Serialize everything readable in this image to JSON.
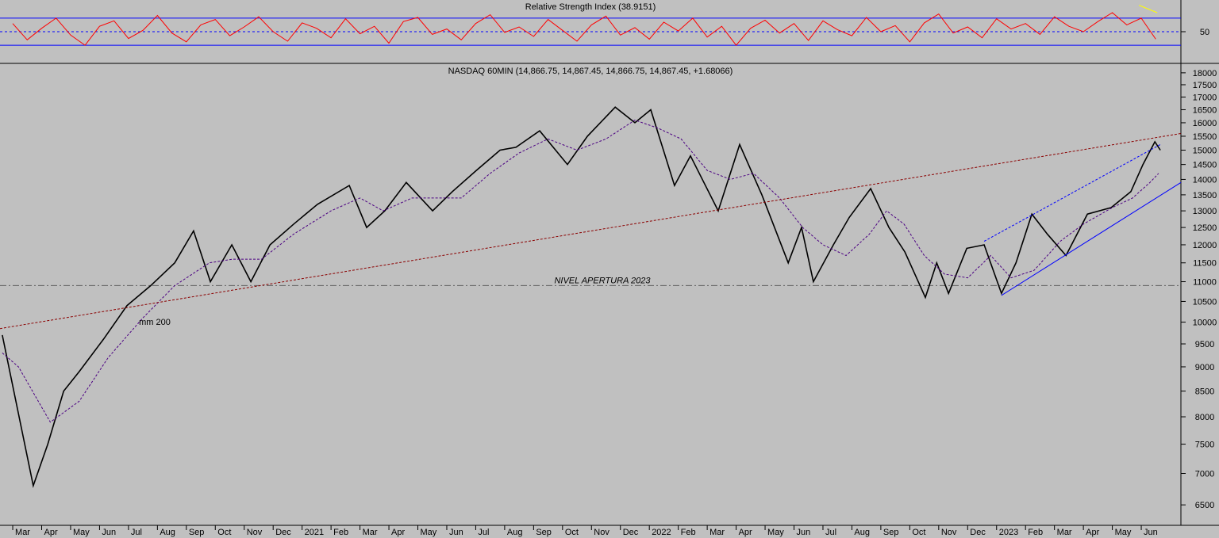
{
  "chart_data": [
    {
      "type": "line",
      "title": "Relative Strength Index (38.9151)",
      "xlim": [
        0.56,
        41.37
      ],
      "ylim": [
        5.6,
        94.4
      ],
      "yticks": [
        50
      ],
      "levels": [
        30,
        70
      ],
      "level_color": "#0000ff",
      "series": [
        {
          "color": "#ff0000",
          "x": [
            1,
            1.5,
            2,
            2.5,
            3,
            3.5,
            4,
            4.5,
            5,
            5.5,
            6,
            6.5,
            7,
            7.5,
            8,
            8.5,
            9,
            9.5,
            10,
            10.5,
            11,
            11.5,
            12,
            12.5,
            13,
            13.5,
            14,
            14.5,
            15,
            15.5,
            16,
            16.5,
            17,
            17.5,
            18,
            18.5,
            19,
            19.5,
            20,
            20.5,
            21,
            21.5,
            22,
            22.5,
            23,
            23.5,
            24,
            24.5,
            25,
            25.5,
            26,
            26.5,
            27,
            27.5,
            28,
            28.5,
            29,
            29.5,
            30,
            30.5,
            31,
            31.5,
            32,
            32.5,
            33,
            33.5,
            34,
            34.5,
            35,
            35.5,
            36,
            36.5,
            37,
            37.5,
            38,
            38.5,
            39,
            39.5,
            40,
            40.5
          ],
          "values": [
            62,
            38,
            55,
            70,
            45,
            30,
            58,
            66,
            40,
            52,
            74,
            48,
            35,
            60,
            68,
            44,
            57,
            72,
            50,
            36,
            63,
            55,
            41,
            69,
            47,
            58,
            33,
            65,
            71,
            46,
            54,
            38,
            62,
            75,
            49,
            57,
            43,
            68,
            52,
            36,
            60,
            73,
            45,
            56,
            39,
            64,
            51,
            70,
            42,
            58,
            30,
            55,
            67,
            48,
            62,
            37,
            66,
            53,
            44,
            71,
            50,
            59,
            35,
            63,
            76,
            48,
            57,
            41,
            69,
            54,
            62,
            46,
            72,
            58,
            50,
            65,
            78,
            60,
            70,
            39
          ]
        },
        {
          "color": "#ffff00",
          "x": [
            39.92,
            40.55
          ],
          "values": [
            89,
            78
          ]
        }
      ]
    },
    {
      "type": "line",
      "title": "NASDAQ 60MIN (14,866.75, 14,867.45, 14,866.75, 14,867.45, +1.68066)",
      "log_scale": true,
      "xlim": [
        0.56,
        41.37
      ],
      "ylim": [
        6194,
        18404
      ],
      "yticks": [
        6500,
        7000,
        7500,
        8000,
        8500,
        9000,
        9500,
        10000,
        10500,
        11000,
        11500,
        12000,
        12500,
        13000,
        13500,
        14000,
        14500,
        15000,
        15500,
        16000,
        16500,
        17000,
        17500,
        18000
      ],
      "xticks": [
        {
          "value": 1,
          "label": "Mar"
        },
        {
          "value": 2,
          "label": "Apr"
        },
        {
          "value": 3,
          "label": "May"
        },
        {
          "value": 4,
          "label": "Jun"
        },
        {
          "value": 5,
          "label": "Jul"
        },
        {
          "value": 6,
          "label": "Aug"
        },
        {
          "value": 7,
          "label": "Sep"
        },
        {
          "value": 8,
          "label": "Oct"
        },
        {
          "value": 9,
          "label": "Nov"
        },
        {
          "value": 10,
          "label": "Dec"
        },
        {
          "value": 11,
          "label": "2021"
        },
        {
          "value": 12,
          "label": "Feb"
        },
        {
          "value": 13,
          "label": "Mar"
        },
        {
          "value": 14,
          "label": "Apr"
        },
        {
          "value": 15,
          "label": "May"
        },
        {
          "value": 16,
          "label": "Jun"
        },
        {
          "value": 17,
          "label": "Jul"
        },
        {
          "value": 18,
          "label": "Aug"
        },
        {
          "value": 19,
          "label": "Sep"
        },
        {
          "value": 20,
          "label": "Oct"
        },
        {
          "value": 21,
          "label": "Nov"
        },
        {
          "value": 22,
          "label": "Dec"
        },
        {
          "value": 23,
          "label": "2022"
        },
        {
          "value": 24,
          "label": "Feb"
        },
        {
          "value": 25,
          "label": "Mar"
        },
        {
          "value": 26,
          "label": "Apr"
        },
        {
          "value": 27,
          "label": "May"
        },
        {
          "value": 28,
          "label": "Jun"
        },
        {
          "value": 29,
          "label": "Jul"
        },
        {
          "value": 30,
          "label": "Aug"
        },
        {
          "value": 31,
          "label": "Sep"
        },
        {
          "value": 32,
          "label": "Oct"
        },
        {
          "value": 33,
          "label": "Nov"
        },
        {
          "value": 34,
          "label": "Dec"
        },
        {
          "value": 35,
          "label": "2023"
        },
        {
          "value": 36,
          "label": "Feb"
        },
        {
          "value": 37,
          "label": "Mar"
        },
        {
          "value": 38,
          "label": "Apr"
        },
        {
          "value": 39,
          "label": "May"
        },
        {
          "value": 40,
          "label": "Jun"
        }
      ],
      "series": [
        {
          "color": "#000000",
          "style": "solid",
          "x": [
            0.64,
            1.71,
            2.21,
            2.76,
            3.3,
            4.13,
            4.95,
            5.77,
            6.6,
            7.25,
            7.83,
            8.57,
            9.23,
            9.89,
            10.71,
            11.53,
            12.63,
            13.23,
            13.86,
            14.6,
            15.51,
            16.19,
            17.02,
            17.84,
            18.39,
            19.21,
            20.17,
            20.86,
            21.82,
            22.5,
            23.05,
            23.87,
            24.42,
            25.38,
            26.12,
            26.89,
            27.8,
            28.26,
            28.67,
            29.36,
            29.91,
            30.65,
            31.28,
            31.83,
            32.54,
            32.93,
            33.34,
            33.97,
            34.57,
            35.17,
            35.67,
            36.22,
            36.76,
            37.4,
            38.14,
            38.96,
            39.64,
            40.06,
            40.47,
            40.66
          ],
          "values": [
            9700,
            6800,
            7500,
            8500,
            8900,
            9600,
            10400,
            10900,
            11500,
            12400,
            11000,
            12000,
            11000,
            12000,
            12600,
            13200,
            13800,
            12500,
            13000,
            13900,
            13000,
            13600,
            14300,
            15000,
            15100,
            15700,
            14500,
            15500,
            16600,
            16000,
            16500,
            13800,
            14800,
            13000,
            15200,
            13500,
            11500,
            12500,
            11000,
            12000,
            12800,
            13700,
            12500,
            11800,
            10600,
            11500,
            10700,
            11900,
            12000,
            10700,
            11500,
            12900,
            12300,
            11700,
            12900,
            13100,
            13600,
            14500,
            15300,
            15000
          ]
        },
        {
          "name": "mm 200",
          "color": "#4b0082",
          "style": "dashed",
          "x": [
            0.64,
            1.2,
            2.3,
            3.3,
            4.3,
            5.5,
            6.6,
            7.8,
            8.6,
            9.6,
            10.7,
            12.0,
            13.0,
            13.8,
            14.8,
            15.8,
            16.5,
            17.5,
            18.5,
            19.5,
            20.5,
            21.5,
            22.5,
            23.3,
            24.1,
            25.0,
            25.8,
            26.6,
            27.5,
            28.3,
            29.0,
            29.8,
            30.6,
            31.2,
            31.8,
            32.5,
            33.2,
            34.0,
            34.8,
            35.5,
            36.3,
            37.2,
            38.0,
            39.0,
            39.7,
            40.3,
            40.6
          ],
          "values": [
            9300,
            9000,
            7900,
            8300,
            9200,
            10100,
            10900,
            11500,
            11600,
            11600,
            12300,
            13000,
            13400,
            13000,
            13400,
            13400,
            13400,
            14200,
            14900,
            15400,
            15000,
            15400,
            16100,
            15800,
            15400,
            14300,
            14000,
            14200,
            13400,
            12500,
            12000,
            11700,
            12300,
            13000,
            12600,
            11700,
            11200,
            11100,
            11700,
            11100,
            11300,
            12100,
            12600,
            13100,
            13400,
            13900,
            14200
          ]
        },
        {
          "color": "#8b0000",
          "style": "dashed",
          "x": [
            0.56,
            41.37
          ],
          "values": [
            9850,
            15600
          ]
        },
        {
          "color": "#0000ff",
          "style": "dashed",
          "x": [
            34.57,
            40.66
          ],
          "values": [
            12100,
            15200
          ]
        },
        {
          "color": "#0000ff",
          "style": "solid",
          "x": [
            35.17,
            41.37
          ],
          "values": [
            10650,
            13900
          ]
        }
      ],
      "hlines": [
        {
          "value": 10900,
          "label": "NIVEL APERTURA 2023",
          "color": "#606060"
        }
      ]
    }
  ]
}
